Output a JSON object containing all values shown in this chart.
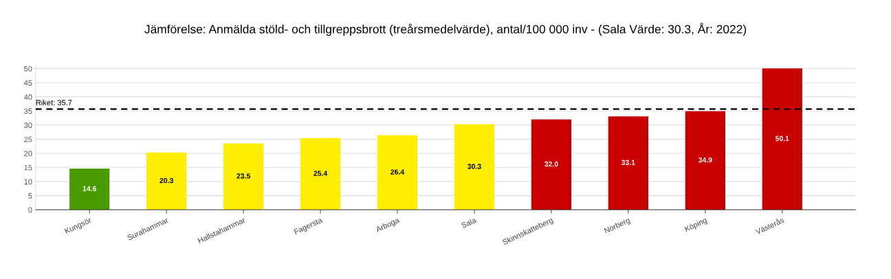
{
  "chart_data": {
    "type": "bar",
    "title": "Jämförelse: Anmälda stöld- och tillgreppsbrott (treårsmedelvärde), antal/100 000 inv - (Sala Värde: 30.3, År: 2022)",
    "categories": [
      "Kungsör",
      "Surahammar",
      "Hallstahammar",
      "Fagersta",
      "Arboga",
      "Sala",
      "Skinnskatteberg",
      "Norberg",
      "Köping",
      "Västerås"
    ],
    "values": [
      14.6,
      20.3,
      23.5,
      25.4,
      26.4,
      30.3,
      32.0,
      33.1,
      34.9,
      50.1
    ],
    "value_labels": [
      "14.6",
      "20.3",
      "23.5",
      "25.4",
      "26.4",
      "30.3",
      "32.0",
      "33.1",
      "34.9",
      "50.1"
    ],
    "colors": [
      "#4a9b00",
      "#ffee00",
      "#ffee00",
      "#ffee00",
      "#ffee00",
      "#ffee00",
      "#c80000",
      "#c80000",
      "#c80000",
      "#c80000"
    ],
    "ylim": [
      0,
      51
    ],
    "yticks": [
      0,
      5,
      10,
      15,
      20,
      25,
      30,
      35,
      40,
      45,
      50
    ],
    "grid": "y",
    "ref_lines": [
      {
        "axis": "y",
        "value": 35.7,
        "label": "Riket: 35.7",
        "color": "#000000",
        "line_style": "dashed"
      }
    ]
  }
}
